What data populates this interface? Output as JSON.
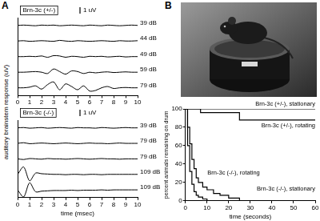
{
  "chart_data": [
    {
      "type": "line",
      "panel": "A",
      "title": "Brn-3c (+/-)",
      "ylabel": "auditory brainstem response (uV)",
      "x": [
        0,
        0.5,
        1,
        1.5,
        2,
        2.5,
        3,
        3.5,
        4,
        4.5,
        5,
        5.5,
        6,
        6.5,
        7,
        7.5,
        8,
        8.5,
        9,
        9.5,
        10
      ],
      "series": [
        {
          "name": "39 dB",
          "color": "#000000",
          "values": [
            0,
            0.05,
            0,
            -0.05,
            0.05,
            0,
            0.05,
            -0.05,
            0,
            0.05,
            0,
            -0.05,
            0.05,
            0,
            -0.05,
            0.05,
            0,
            -0.05,
            0,
            0.05,
            0
          ]
        },
        {
          "name": "44 dB",
          "color": "#000000",
          "values": [
            0,
            0.05,
            -0.05,
            0,
            0.05,
            0,
            -0.05,
            0.1,
            0,
            -0.05,
            0.05,
            0,
            -0.05,
            0,
            0.05,
            0,
            -0.05,
            0.05,
            0,
            0,
            0.05
          ]
        },
        {
          "name": "49 dB",
          "color": "#000000",
          "values": [
            0,
            0,
            0.05,
            0,
            0.1,
            -0.1,
            0.15,
            0.1,
            -0.1,
            0.05,
            0,
            -0.1,
            0.05,
            0,
            0.05,
            -0.05,
            0,
            0.05,
            -0.05,
            0,
            0
          ]
        },
        {
          "name": "59 dB",
          "color": "#000000",
          "values": [
            0,
            0,
            0.05,
            0.1,
            0,
            -0.2,
            0.5,
            0.1,
            -0.3,
            0.2,
            0.1,
            -0.2,
            0,
            -0.1,
            0,
            0.05,
            -0.05,
            0,
            0.05,
            0,
            0
          ]
        },
        {
          "name": "79 dB",
          "color": "#000000",
          "values": [
            0,
            0,
            0.1,
            0.3,
            -0.2,
            0.5,
            0.9,
            -0.3,
            0.6,
            0.2,
            -0.3,
            0.3,
            -0.5,
            -0.4,
            0,
            0.2,
            -0.1,
            0,
            0.05,
            0,
            0
          ]
        }
      ],
      "xlim": [
        0,
        10
      ],
      "xticks": [
        0,
        1,
        2,
        3,
        4,
        5,
        6,
        7,
        8,
        9,
        10
      ],
      "ylim": [
        -1.2,
        1.2
      ],
      "scale_bar": {
        "value": 1,
        "label": "1 uV"
      },
      "tick_labels": "x",
      "grid": false
    },
    {
      "type": "line",
      "title": "Brn-3c (-/-)",
      "xlabel": "time (msec)",
      "x": [
        0,
        0.5,
        1,
        1.5,
        2,
        2.5,
        3,
        3.5,
        4,
        4.5,
        5,
        5.5,
        6,
        6.5,
        7,
        7.5,
        8,
        8.5,
        9,
        9.5,
        10
      ],
      "series": [
        {
          "name": "39 dB",
          "color": "#000000",
          "values": [
            0,
            0.05,
            -0.05,
            0,
            0.05,
            -0.05,
            0,
            0.05,
            0,
            -0.05,
            0.05,
            0,
            0,
            -0.05,
            0.05,
            0,
            -0.05,
            0,
            0.05,
            0,
            0
          ]
        },
        {
          "name": "79 dB",
          "color": "#000000",
          "values": [
            0,
            0.1,
            -0.05,
            0,
            0.05,
            0,
            -0.05,
            0,
            0.05,
            0,
            -0.05,
            0,
            0.05,
            0,
            0,
            -0.05,
            0,
            0.05,
            0,
            0,
            0
          ]
        },
        {
          "name": "79 dB",
          "color": "#000000",
          "values": [
            0,
            -0.1,
            0.05,
            0,
            -0.05,
            0.05,
            0,
            0,
            -0.05,
            0,
            0.05,
            0,
            -0.05,
            0,
            0.05,
            0,
            0,
            -0.05,
            0,
            0,
            0
          ]
        },
        {
          "name": "109 dB",
          "color": "#000000",
          "values": [
            0,
            1.15,
            -1,
            0.2,
            0.1,
            0.05,
            0,
            0,
            -0.05,
            0,
            0,
            -0.05,
            0,
            0,
            -0.05,
            0,
            0,
            0,
            0,
            0,
            0
          ]
        },
        {
          "name": "109 dB",
          "color": "#000000",
          "values": [
            0,
            -1.1,
            1.1,
            -0.3,
            -0.2,
            -0.15,
            -0.1,
            -0.1,
            -0.1,
            -0.05,
            -0.1,
            -0.05,
            -0.05,
            -0.05,
            0,
            -0.05,
            0,
            0,
            0,
            0,
            0
          ]
        }
      ],
      "xlim": [
        0,
        10
      ],
      "xticks": [
        0,
        1,
        2,
        3,
        4,
        5,
        6,
        7,
        8,
        9,
        10
      ],
      "ylim": [
        -1.2,
        1.2
      ],
      "scale_bar": {
        "value": 1,
        "label": "1 uV"
      },
      "tick_labels": "x",
      "grid": false
    },
    {
      "type": "step",
      "panel": "B",
      "xlabel": "time (seconds)",
      "ylabel": "percent animals remaining on drum",
      "series": [
        {
          "name": "Brn-3c (+/-), stationary",
          "color": "#000000",
          "line_style": "solid",
          "x": [
            0,
            60
          ],
          "values": [
            100,
            100
          ]
        },
        {
          "name": "Brn-3c (+/-), rotating",
          "color": "#000000",
          "line_style": "solid",
          "x": [
            0,
            7,
            25,
            60
          ],
          "values": [
            100,
            96,
            88,
            88
          ]
        },
        {
          "name": "Brn-3c (-/-), rotating",
          "color": "#000000",
          "line_style": "solid",
          "x": [
            0,
            1,
            2,
            3,
            4,
            5,
            6,
            8,
            10
          ],
          "values": [
            100,
            60,
            32,
            18,
            10,
            6,
            4,
            2,
            0
          ]
        },
        {
          "name": "Brn-3c (-/-), stationary",
          "color": "#000000",
          "line_style": "solid",
          "x": [
            0,
            1,
            2,
            3,
            4,
            5,
            6,
            8,
            10,
            13,
            16,
            20,
            25
          ],
          "values": [
            100,
            80,
            62,
            45,
            35,
            25,
            20,
            15,
            12,
            8,
            6,
            3,
            0
          ]
        }
      ],
      "xlim": [
        0,
        60
      ],
      "xticks": [
        0,
        10,
        20,
        30,
        40,
        50,
        60
      ],
      "ylim": [
        0,
        100
      ],
      "yticks": [
        0,
        20,
        40,
        60,
        80,
        100
      ],
      "grid": false
    }
  ]
}
